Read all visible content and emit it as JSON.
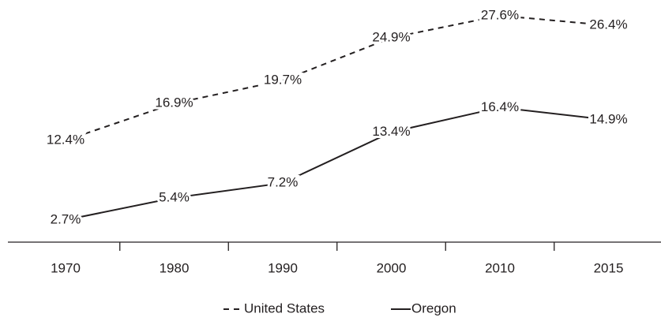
{
  "chart_data": {
    "type": "line",
    "categories": [
      "1970",
      "1980",
      "1990",
      "2000",
      "2010",
      "2015"
    ],
    "series": [
      {
        "name": "United States",
        "color": "#231f20",
        "dash": true,
        "values": [
          12.4,
          16.9,
          19.7,
          24.9,
          27.6,
          26.4
        ],
        "value_labels": [
          "12.4%",
          "16.9%",
          "19.7%",
          "24.9%",
          "27.6%",
          "26.4%"
        ]
      },
      {
        "name": "Oregon",
        "color": "#231f20",
        "dash": false,
        "values": [
          2.7,
          5.4,
          7.2,
          13.4,
          16.4,
          14.9
        ],
        "value_labels": [
          "2.7%",
          "5.4%",
          "7.2%",
          "13.4%",
          "16.4%",
          "14.9%"
        ]
      }
    ],
    "ylim": [
      0,
      29.5
    ],
    "legend": "bottom"
  }
}
